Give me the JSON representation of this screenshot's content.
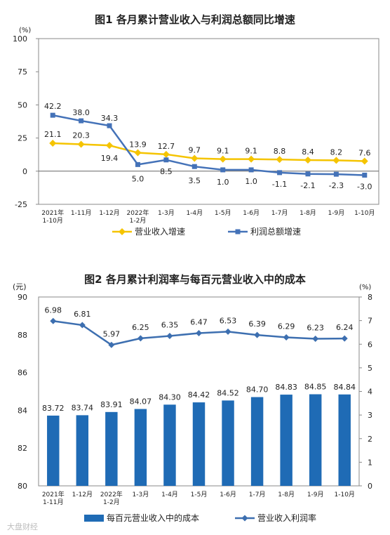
{
  "chart_data": [
    {
      "type": "line",
      "title": "图1  各月累计营业收入与利润总额同比增速",
      "yunit": "(%)",
      "ylim": [
        -25,
        100
      ],
      "yticks": [
        "100",
        "75",
        "50",
        "25",
        "0",
        "-25"
      ],
      "categories": [
        "2021年\n1-10月",
        "1-11月",
        "1-12月",
        "2022年\n1-2月",
        "1-3月",
        "1-4月",
        "1-5月",
        "1-6月",
        "1-7月",
        "1-8月",
        "1-9月",
        "1-10月"
      ],
      "series": [
        {
          "name": "营业收入增速",
          "color": "#f5c400",
          "values": [
            21.1,
            20.3,
            19.4,
            13.9,
            12.7,
            9.7,
            9.1,
            9.1,
            8.8,
            8.4,
            8.2,
            7.6
          ],
          "labels": [
            "21.1",
            "20.3",
            "19.4",
            "13.9",
            "12.7",
            "9.7",
            "9.1",
            "9.1",
            "8.8",
            "8.4",
            "8.2",
            "7.6"
          ]
        },
        {
          "name": "利润总额增速",
          "color": "#4472b8",
          "values": [
            42.2,
            38.0,
            34.3,
            5.0,
            8.5,
            3.5,
            1.0,
            1.0,
            -1.1,
            -2.1,
            -2.3,
            -3.0
          ],
          "labels": [
            "42.2",
            "38.0",
            "34.3",
            "5.0",
            "8.5",
            "3.5",
            "1.0",
            "1.0",
            "-1.1",
            "-2.1",
            "-2.3",
            "-3.0"
          ]
        }
      ],
      "legend_position": "bottom"
    },
    {
      "type": "bar+line",
      "title": "图2  各月累计利润率与每百元营业收入中的成本",
      "yunit_left": "(元)",
      "yunit_right": "(%)",
      "ylim_left": [
        80,
        90
      ],
      "ylim_right": [
        0,
        8
      ],
      "yticks_left": [
        "90",
        "88",
        "86",
        "84",
        "82",
        "80"
      ],
      "yticks_right": [
        "8",
        "7",
        "6",
        "5",
        "4",
        "3",
        "2",
        "1",
        "0"
      ],
      "categories": [
        "2021年\n1-11月",
        "1-12月",
        "2022年\n1-2月",
        "1-3月",
        "1-4月",
        "1-5月",
        "1-6月",
        "1-7月",
        "1-8月",
        "1-9月",
        "1-10月"
      ],
      "series": [
        {
          "name": "每百元营业收入中的成本",
          "type": "bar",
          "axis": "left",
          "color": "#1f6bb5",
          "values": [
            83.72,
            83.74,
            83.91,
            84.07,
            84.3,
            84.42,
            84.52,
            84.7,
            84.83,
            84.85,
            84.84
          ],
          "labels": [
            "83.72",
            "83.74",
            "83.91",
            "84.07",
            "84.30",
            "84.42",
            "84.52",
            "84.70",
            "84.83",
            "84.85",
            "84.84"
          ]
        },
        {
          "name": "营业收入利润率",
          "type": "line",
          "axis": "right",
          "color": "#3d6fb0",
          "values": [
            6.98,
            6.81,
            5.97,
            6.25,
            6.35,
            6.47,
            6.53,
            6.39,
            6.29,
            6.23,
            6.24
          ],
          "labels": [
            "6.98",
            "6.81",
            "5.97",
            "6.25",
            "6.35",
            "6.47",
            "6.53",
            "6.39",
            "6.29",
            "6.23",
            "6.24"
          ]
        }
      ],
      "legend_position": "bottom"
    }
  ],
  "watermark": "大盘财经"
}
